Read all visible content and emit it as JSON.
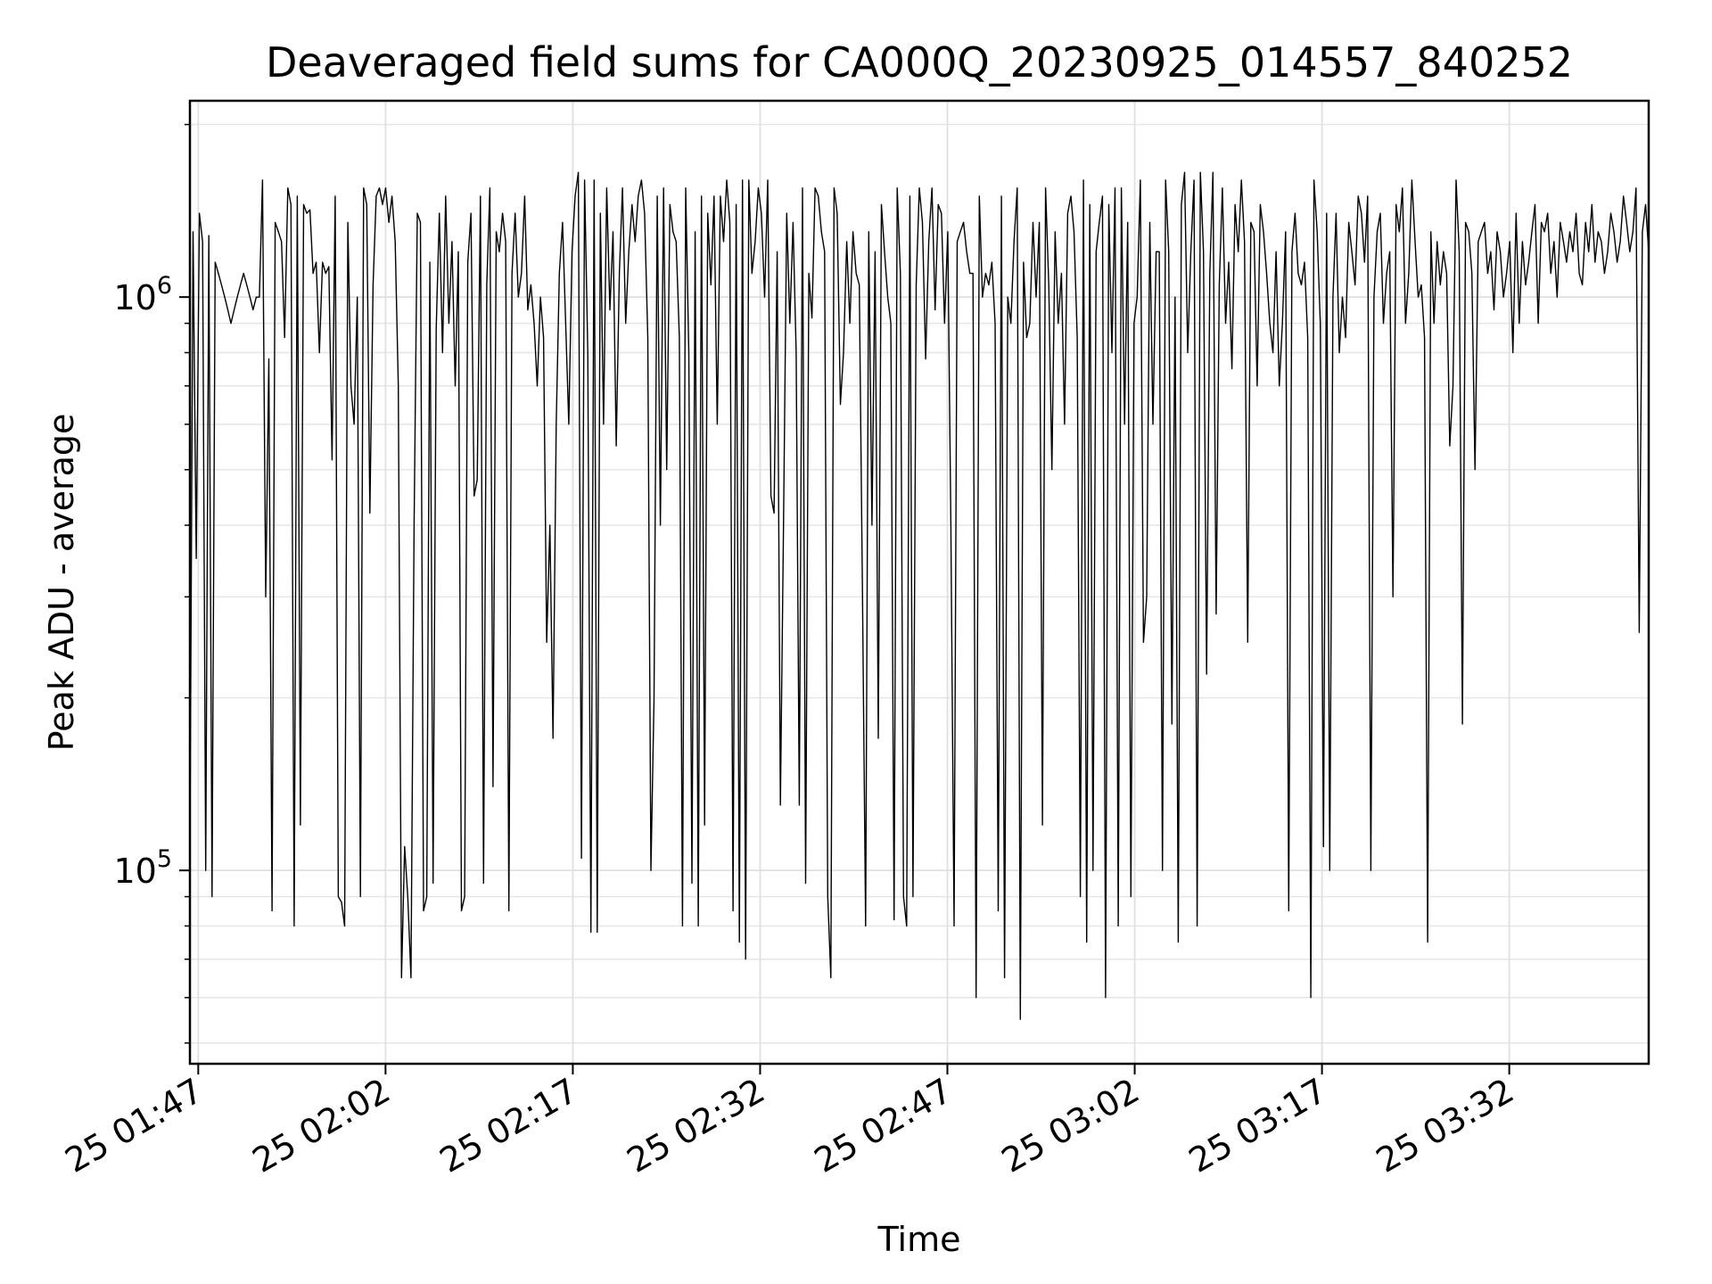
{
  "chart_data": {
    "type": "line",
    "title": "Deaveraged field sums for CA000Q_20230925_014557_840252",
    "xlabel": "Time",
    "ylabel": "Peak ADU - average",
    "yscale": "log",
    "ylim": [
      46000,
      2200000
    ],
    "xlim": [
      "2023-09-25 01:46:20",
      "2023-09-25 03:43:10"
    ],
    "grid": true,
    "line_color": "#000000",
    "x_ticks": [
      {
        "value": "2023-09-25 01:47",
        "label": "25 01:47"
      },
      {
        "value": "2023-09-25 02:02",
        "label": "25 02:02"
      },
      {
        "value": "2023-09-25 02:17",
        "label": "25 02:17"
      },
      {
        "value": "2023-09-25 02:32",
        "label": "25 02:32"
      },
      {
        "value": "2023-09-25 02:47",
        "label": "25 02:47"
      },
      {
        "value": "2023-09-25 03:02",
        "label": "25 03:02"
      },
      {
        "value": "2023-09-25 03:17",
        "label": "25 03:17"
      },
      {
        "value": "2023-09-25 03:32",
        "label": "25 03:32"
      }
    ],
    "y_ticks": [
      {
        "value": 100000,
        "base": "10",
        "exp": "5"
      },
      {
        "value": 1000000,
        "base": "10",
        "exp": "6"
      }
    ],
    "series": [
      {
        "name": "",
        "x_start": "2023-09-25 01:46:20",
        "x_end": "2023-09-25 03:43:10",
        "y": [
          110000,
          1300000,
          350000,
          1400000,
          1250000,
          100000,
          1280000,
          90000,
          1150000,
          1100000,
          1050000,
          1000000,
          950000,
          900000,
          950000,
          1000000,
          1050000,
          1100000,
          1050000,
          1000000,
          950000,
          1000000,
          1000000,
          1600000,
          300000,
          780000,
          85000,
          1350000,
          1300000,
          1250000,
          850000,
          1550000,
          1450000,
          80000,
          1500000,
          120000,
          1450000,
          1400000,
          1420000,
          1100000,
          1150000,
          800000,
          1150000,
          1100000,
          1130000,
          520000,
          1500000,
          90000,
          88000,
          80000,
          1350000,
          700000,
          600000,
          1000000,
          90000,
          1550000,
          1450000,
          420000,
          1050000,
          1500000,
          1550000,
          1450000,
          1550000,
          1350000,
          1500000,
          1250000,
          700000,
          65000,
          110000,
          90000,
          65000,
          400000,
          1400000,
          1350000,
          85000,
          90000,
          1150000,
          95000,
          880000,
          1400000,
          800000,
          1500000,
          900000,
          1250000,
          700000,
          1200000,
          85000,
          90000,
          1150000,
          1400000,
          450000,
          480000,
          1500000,
          95000,
          1050000,
          1550000,
          140000,
          1300000,
          1200000,
          1400000,
          1250000,
          85000,
          1100000,
          1400000,
          1000000,
          1100000,
          1500000,
          950000,
          1050000,
          900000,
          700000,
          1000000,
          850000,
          250000,
          400000,
          170000,
          600000,
          1100000,
          1350000,
          900000,
          600000,
          1200000,
          1500000,
          1650000,
          105000,
          1600000,
          800000,
          78000,
          1600000,
          78000,
          1400000,
          600000,
          1550000,
          950000,
          1300000,
          550000,
          1100000,
          1550000,
          900000,
          1200000,
          1450000,
          1250000,
          1500000,
          1600000,
          1400000,
          850000,
          100000,
          200000,
          1500000,
          400000,
          1550000,
          500000,
          1450000,
          1300000,
          1250000,
          850000,
          80000,
          1550000,
          800000,
          95000,
          1300000,
          80000,
          1500000,
          120000,
          1400000,
          1050000,
          1500000,
          600000,
          1500000,
          1250000,
          1600000,
          1350000,
          85000,
          1450000,
          75000,
          1600000,
          70000,
          1600000,
          1100000,
          1250000,
          1550000,
          1400000,
          1000000,
          1600000,
          450000,
          420000,
          1200000,
          130000,
          400000,
          1400000,
          900000,
          1350000,
          800000,
          130000,
          1550000,
          95000,
          1100000,
          920000,
          1550000,
          1500000,
          1300000,
          1200000,
          90000,
          65000,
          1550000,
          1400000,
          650000,
          800000,
          1250000,
          900000,
          1300000,
          1100000,
          1050000,
          300000,
          80000,
          1300000,
          400000,
          1200000,
          170000,
          1450000,
          1200000,
          1000000,
          900000,
          82000,
          1550000,
          1100000,
          90000,
          80000,
          1500000,
          90000,
          1050000,
          1550000,
          1350000,
          780000,
          1250000,
          1550000,
          950000,
          1450000,
          1400000,
          900000,
          1300000,
          400000,
          80000,
          1250000,
          1300000,
          1350000,
          1200000,
          1100000,
          1100000,
          60000,
          1500000,
          1000000,
          1100000,
          1050000,
          1150000,
          900000,
          85000,
          1500000,
          65000,
          1000000,
          900000,
          1250000,
          1550000,
          55000,
          1150000,
          850000,
          900000,
          1350000,
          1000000,
          1350000,
          120000,
          1550000,
          1050000,
          500000,
          1300000,
          900000,
          1100000,
          600000,
          1400000,
          1500000,
          1300000,
          850000,
          90000,
          1600000,
          75000,
          1450000,
          100000,
          1200000,
          1350000,
          1500000,
          60000,
          1450000,
          800000,
          1550000,
          80000,
          1550000,
          600000,
          1350000,
          90000,
          900000,
          1000000,
          1600000,
          250000,
          300000,
          1350000,
          600000,
          1200000,
          1200000,
          100000,
          1600000,
          1200000,
          180000,
          1000000,
          75000,
          1450000,
          1650000,
          800000,
          1200000,
          1600000,
          80000,
          1650000,
          1200000,
          220000,
          1100000,
          1650000,
          280000,
          1050000,
          1550000,
          900000,
          1150000,
          750000,
          1450000,
          1200000,
          1600000,
          1250000,
          250000,
          1350000,
          1300000,
          700000,
          1450000,
          1300000,
          1100000,
          900000,
          800000,
          1200000,
          700000,
          900000,
          1300000,
          85000,
          1200000,
          1400000,
          1100000,
          1050000,
          1150000,
          850000,
          60000,
          1600000,
          1300000,
          900000,
          110000,
          1400000,
          100000,
          1000000,
          1400000,
          800000,
          1000000,
          850000,
          1350000,
          1200000,
          1050000,
          1500000,
          1400000,
          1150000,
          1500000,
          100000,
          1000000,
          1300000,
          1400000,
          900000,
          1100000,
          1200000,
          300000,
          1450000,
          1300000,
          1550000,
          900000,
          1100000,
          1600000,
          1250000,
          1000000,
          1050000,
          850000,
          75000,
          1300000,
          900000,
          1250000,
          1050000,
          1200000,
          1100000,
          550000,
          700000,
          1600000,
          1200000,
          180000,
          1350000,
          1300000,
          1100000,
          500000,
          1250000,
          1300000,
          1350000,
          1100000,
          1200000,
          950000,
          1300000,
          1200000,
          1000000,
          1100000,
          1250000,
          800000,
          1400000,
          900000,
          1250000,
          1050000,
          1150000,
          1300000,
          1450000,
          900000,
          1350000,
          1300000,
          1400000,
          1100000,
          1250000,
          1000000,
          1350000,
          1250000,
          1150000,
          1300000,
          1200000,
          1400000,
          1100000,
          1050000,
          1350000,
          1200000,
          1450000,
          1150000,
          1300000,
          1250000,
          1100000,
          1200000,
          1400000,
          1300000,
          1150000,
          1250000,
          1500000,
          1350000,
          1200000,
          1300000,
          1550000,
          260000,
          1300000,
          1450000,
          1200000
        ]
      }
    ]
  }
}
